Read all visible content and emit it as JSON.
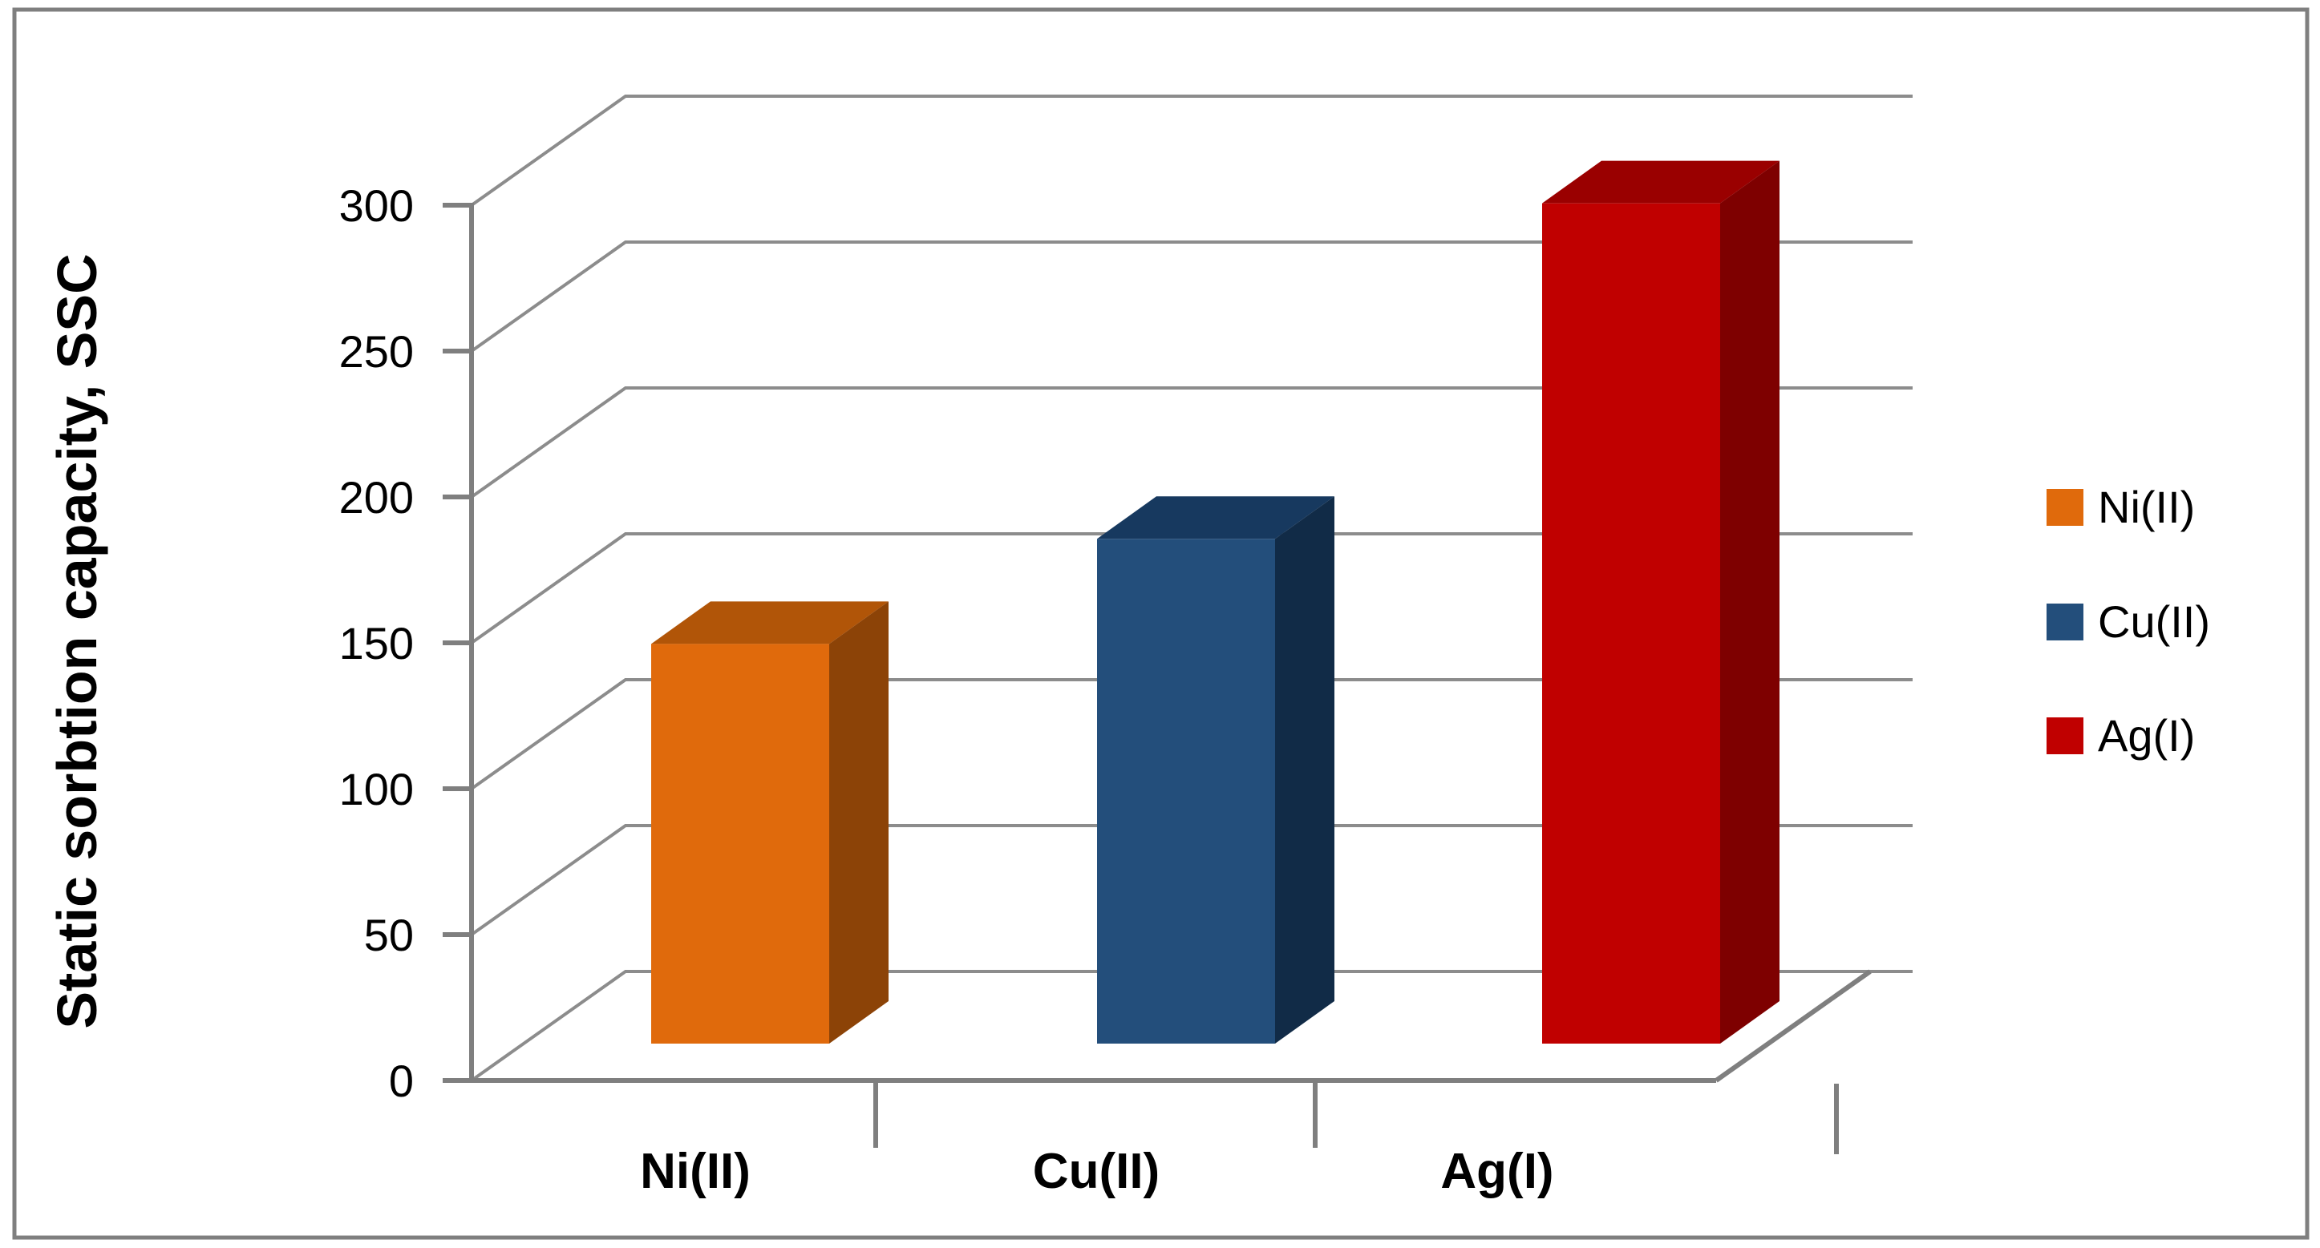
{
  "frame": {
    "border_color": "#7f7f7f",
    "background": "#ffffff"
  },
  "chart_data": {
    "type": "bar",
    "projection": "3d",
    "title": "",
    "ylabel": "Static sorbtion capacity, SSC",
    "xlabel": "",
    "categories": [
      "Ni(II)",
      "Cu(II)",
      "Ag(I)"
    ],
    "series": [
      {
        "name": "SSC",
        "values": [
          137,
          173,
          288
        ]
      }
    ],
    "values": [
      137,
      173,
      288
    ],
    "yticks": [
      0,
      50,
      100,
      150,
      200,
      250,
      300
    ],
    "ylim": [
      0,
      300
    ],
    "grid": true,
    "legend_position": "right",
    "gridline_color": "#8c8c8c",
    "axis_color": "#7f7f7f",
    "tick_label_color": "#000000",
    "bar_colors": [
      {
        "front": "#e06a0c",
        "top": "#b15508",
        "side": "#8c4307"
      },
      {
        "front": "#234e7b",
        "top": "#17395f",
        "side": "#112b47"
      },
      {
        "front": "#c00000",
        "top": "#9a0000",
        "side": "#7e0000"
      }
    ],
    "legend": [
      {
        "label": "Ni(II)",
        "color": "#e06a0c"
      },
      {
        "label": "Cu(II)",
        "color": "#234e7b"
      },
      {
        "label": "Ag(I)",
        "color": "#c00000"
      }
    ]
  }
}
